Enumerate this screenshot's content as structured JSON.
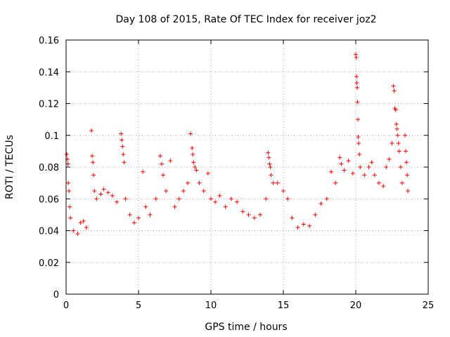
{
  "chart_data": {
    "type": "scatter",
    "title": "Day 108 of 2015, Rate Of TEC Index for receiver joz2",
    "xlabel": "GPS time / hours",
    "ylabel": "ROTI / TECUs",
    "xlim": [
      0,
      25
    ],
    "ylim": [
      0,
      0.16
    ],
    "xticks": [
      0,
      5,
      10,
      15,
      20,
      25
    ],
    "xtick_labels": [
      "0",
      "5",
      "10",
      "15",
      "20",
      "25"
    ],
    "yticks": [
      0,
      0.02,
      0.04,
      0.06,
      0.08,
      0.1,
      0.12,
      0.14,
      0.16
    ],
    "ytick_labels": [
      "0",
      "0.02",
      "0.04",
      "0.06",
      "0.08",
      "0.1",
      "0.12",
      "0.14",
      "0.16"
    ],
    "grid": true,
    "marker": "+",
    "color": "#ff0000",
    "series": [
      {
        "name": "ROTI",
        "points": [
          [
            0.05,
            0.088
          ],
          [
            0.1,
            0.085
          ],
          [
            0.12,
            0.082
          ],
          [
            0.15,
            0.07
          ],
          [
            0.2,
            0.065
          ],
          [
            0.25,
            0.055
          ],
          [
            0.3,
            0.048
          ],
          [
            0.5,
            0.04
          ],
          [
            0.8,
            0.038
          ],
          [
            1.0,
            0.045
          ],
          [
            1.2,
            0.046
          ],
          [
            1.4,
            0.042
          ],
          [
            1.75,
            0.103
          ],
          [
            1.8,
            0.087
          ],
          [
            1.85,
            0.083
          ],
          [
            1.9,
            0.075
          ],
          [
            1.95,
            0.065
          ],
          [
            2.1,
            0.06
          ],
          [
            2.4,
            0.063
          ],
          [
            2.6,
            0.066
          ],
          [
            2.9,
            0.064
          ],
          [
            3.2,
            0.062
          ],
          [
            3.5,
            0.058
          ],
          [
            3.8,
            0.101
          ],
          [
            3.85,
            0.097
          ],
          [
            3.9,
            0.093
          ],
          [
            3.95,
            0.088
          ],
          [
            4.0,
            0.083
          ],
          [
            4.1,
            0.06
          ],
          [
            4.4,
            0.05
          ],
          [
            4.7,
            0.045
          ],
          [
            5.0,
            0.048
          ],
          [
            5.3,
            0.077
          ],
          [
            5.5,
            0.055
          ],
          [
            5.8,
            0.05
          ],
          [
            6.2,
            0.06
          ],
          [
            6.5,
            0.087
          ],
          [
            6.6,
            0.082
          ],
          [
            6.7,
            0.075
          ],
          [
            6.9,
            0.065
          ],
          [
            7.2,
            0.084
          ],
          [
            7.5,
            0.055
          ],
          [
            7.8,
            0.06
          ],
          [
            8.1,
            0.065
          ],
          [
            8.4,
            0.07
          ],
          [
            8.6,
            0.101
          ],
          [
            8.7,
            0.092
          ],
          [
            8.75,
            0.088
          ],
          [
            8.8,
            0.083
          ],
          [
            8.9,
            0.08
          ],
          [
            9.0,
            0.078
          ],
          [
            9.2,
            0.07
          ],
          [
            9.5,
            0.065
          ],
          [
            9.8,
            0.076
          ],
          [
            10.0,
            0.06
          ],
          [
            10.3,
            0.058
          ],
          [
            10.6,
            0.062
          ],
          [
            11.0,
            0.055
          ],
          [
            11.4,
            0.06
          ],
          [
            11.8,
            0.058
          ],
          [
            12.2,
            0.052
          ],
          [
            12.6,
            0.05
          ],
          [
            13.0,
            0.048
          ],
          [
            13.4,
            0.05
          ],
          [
            13.8,
            0.06
          ],
          [
            13.95,
            0.089
          ],
          [
            14.0,
            0.086
          ],
          [
            14.05,
            0.082
          ],
          [
            14.1,
            0.08
          ],
          [
            14.15,
            0.075
          ],
          [
            14.3,
            0.07
          ],
          [
            14.6,
            0.07
          ],
          [
            15.0,
            0.065
          ],
          [
            15.3,
            0.06
          ],
          [
            15.6,
            0.048
          ],
          [
            16.0,
            0.042
          ],
          [
            16.4,
            0.044
          ],
          [
            16.8,
            0.043
          ],
          [
            17.2,
            0.05
          ],
          [
            17.6,
            0.057
          ],
          [
            18.0,
            0.06
          ],
          [
            18.3,
            0.077
          ],
          [
            18.6,
            0.07
          ],
          [
            18.9,
            0.086
          ],
          [
            19.0,
            0.082
          ],
          [
            19.2,
            0.078
          ],
          [
            19.5,
            0.084
          ],
          [
            19.8,
            0.076
          ],
          [
            20.0,
            0.151
          ],
          [
            20.03,
            0.149
          ],
          [
            20.05,
            0.137
          ],
          [
            20.07,
            0.133
          ],
          [
            20.1,
            0.13
          ],
          [
            20.12,
            0.121
          ],
          [
            20.15,
            0.11
          ],
          [
            20.17,
            0.099
          ],
          [
            20.2,
            0.095
          ],
          [
            20.25,
            0.088
          ],
          [
            20.3,
            0.08
          ],
          [
            20.6,
            0.075
          ],
          [
            20.9,
            0.08
          ],
          [
            21.1,
            0.083
          ],
          [
            21.3,
            0.075
          ],
          [
            21.6,
            0.07
          ],
          [
            21.9,
            0.068
          ],
          [
            22.1,
            0.08
          ],
          [
            22.3,
            0.085
          ],
          [
            22.5,
            0.095
          ],
          [
            22.6,
            0.131
          ],
          [
            22.65,
            0.128
          ],
          [
            22.7,
            0.117
          ],
          [
            22.75,
            0.116
          ],
          [
            22.8,
            0.107
          ],
          [
            22.85,
            0.104
          ],
          [
            22.9,
            0.1
          ],
          [
            22.95,
            0.095
          ],
          [
            23.0,
            0.09
          ],
          [
            23.1,
            0.08
          ],
          [
            23.2,
            0.07
          ],
          [
            23.4,
            0.1
          ],
          [
            23.45,
            0.09
          ],
          [
            23.5,
            0.083
          ],
          [
            23.55,
            0.075
          ],
          [
            23.6,
            0.065
          ]
        ]
      }
    ]
  }
}
